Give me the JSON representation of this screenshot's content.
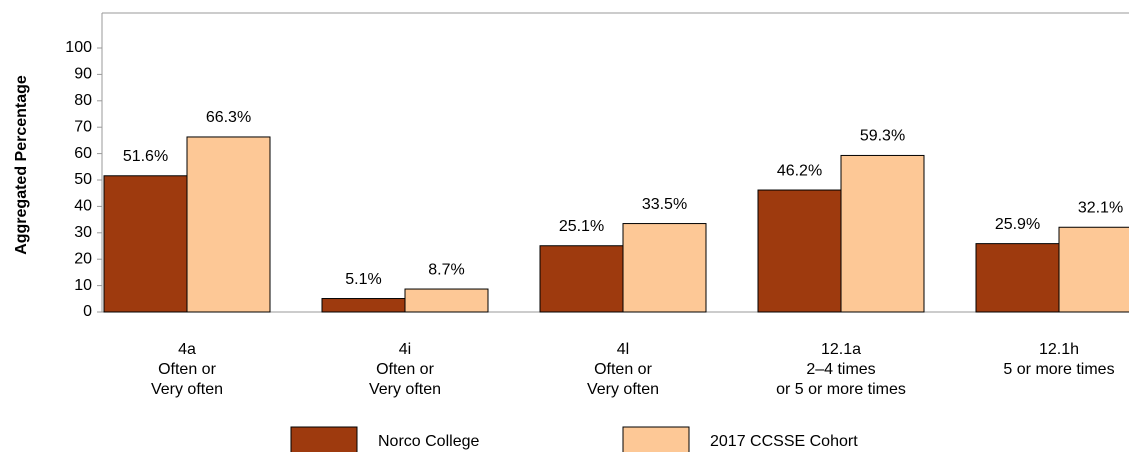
{
  "chart_data": {
    "type": "bar",
    "y_label": "Aggregated Percentage",
    "categories": [
      [
        "4a",
        "Often or",
        "Very often"
      ],
      [
        "4i",
        "Often or",
        "Very often"
      ],
      [
        "4l",
        "Often or",
        "Very often"
      ],
      [
        "12.1a",
        "2–4 times",
        "or 5 or more times"
      ],
      [
        "12.1h",
        "5 or more times"
      ]
    ],
    "series": [
      {
        "name": "Norco College",
        "color": "#9e3a0e",
        "values": [
          51.6,
          5.1,
          25.1,
          46.2,
          25.9
        ],
        "value_labels": [
          "51.6%",
          "5.1%",
          "25.1%",
          "46.2%",
          "25.9%"
        ]
      },
      {
        "name": "2017 CCSSE Cohort",
        "color": "#fdc896",
        "values": [
          66.3,
          8.7,
          33.5,
          59.3,
          32.1
        ],
        "value_labels": [
          "66.3%",
          "8.7%",
          "33.5%",
          "59.3%",
          "32.1%"
        ]
      }
    ],
    "ylim": [
      0,
      100
    ],
    "yticks": [
      0,
      10,
      20,
      30,
      40,
      50,
      60,
      70,
      80,
      90,
      100
    ],
    "grid": false
  }
}
